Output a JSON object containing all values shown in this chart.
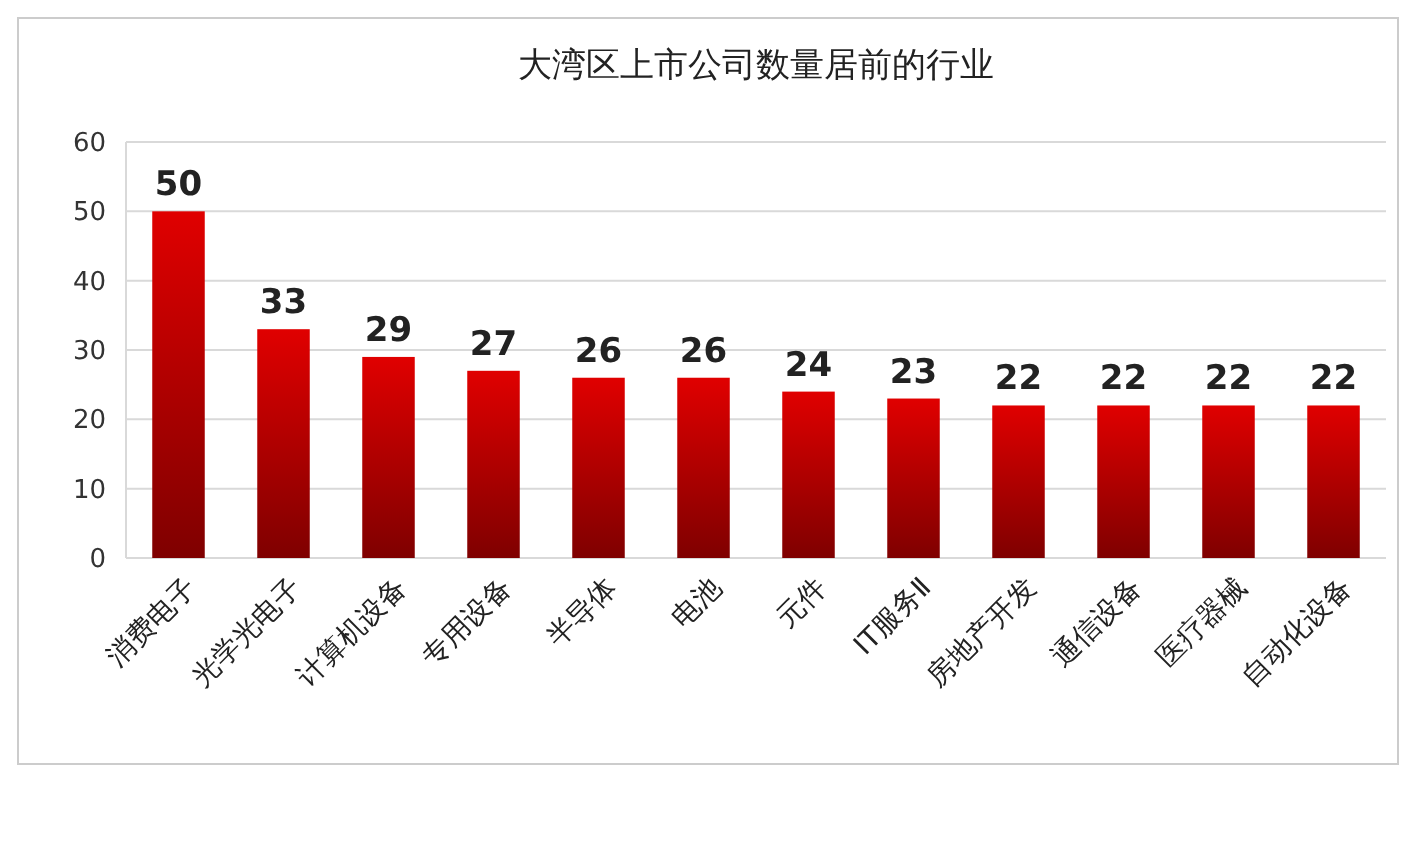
{
  "chart_data": {
    "type": "bar",
    "title": "大湾区上市公司数量居前的行业",
    "categories": [
      "消费电子",
      "光学光电子",
      "计算机设备",
      "专用设备",
      "半导体",
      "电池",
      "元件",
      "IT服务Ⅱ",
      "房地产开发",
      "通信设备",
      "医疗器械",
      "自动化设备"
    ],
    "values": [
      50,
      33,
      29,
      27,
      26,
      26,
      24,
      23,
      22,
      22,
      22,
      22
    ],
    "color": "#e00000",
    "ylim": [
      0,
      60
    ],
    "yticks": [
      0,
      10,
      20,
      30,
      40,
      50,
      60
    ],
    "grid": "y",
    "data_labels": true
  }
}
